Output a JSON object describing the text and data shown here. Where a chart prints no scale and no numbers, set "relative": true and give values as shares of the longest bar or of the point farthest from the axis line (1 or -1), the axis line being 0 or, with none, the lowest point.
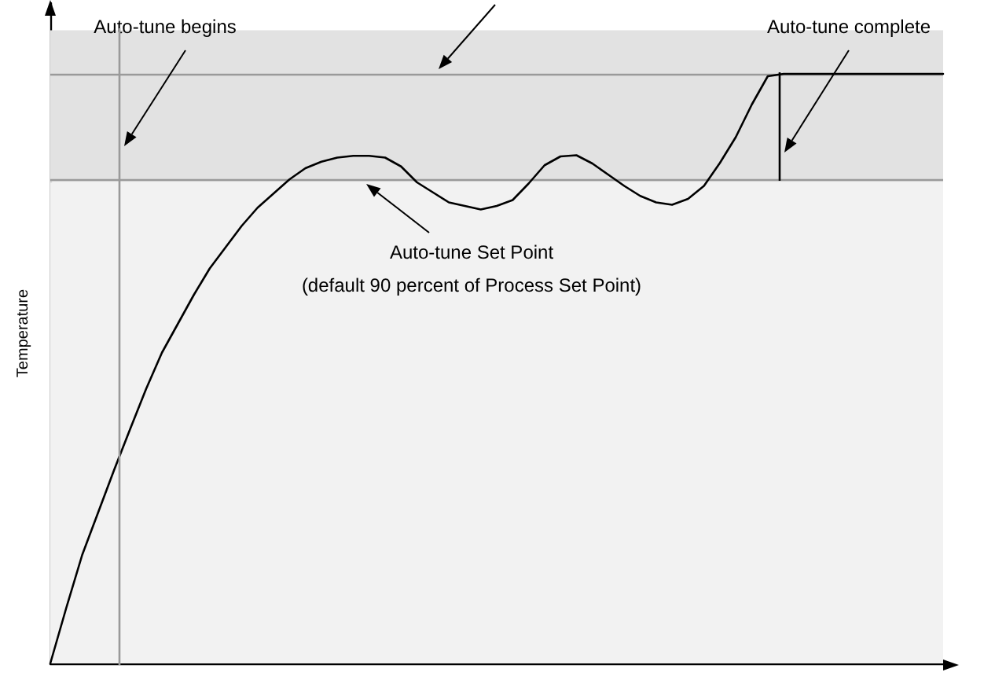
{
  "chart_data": {
    "type": "line",
    "relative": true,
    "ylabel": "Temperature",
    "ylim": [
      0,
      1.12
    ],
    "grid": false,
    "marker": "none",
    "line_style": "solid",
    "categories": [
      null,
      null,
      null,
      null,
      null,
      null,
      null,
      null,
      null,
      null,
      null,
      null,
      null,
      null,
      null,
      null,
      null,
      null,
      null,
      null,
      null,
      null,
      null,
      null,
      null,
      null,
      null,
      null,
      null,
      null,
      null,
      null,
      null,
      null,
      null,
      null,
      null,
      null,
      null,
      null,
      null,
      null,
      null,
      null,
      null,
      null,
      null,
      null,
      null,
      null,
      null,
      null,
      null,
      null,
      null,
      null,
      null
    ],
    "series": [
      {
        "color": "#000000",
        "values": [
          0,
          0.094,
          0.184,
          0.256,
          0.328,
          0.397,
          0.465,
          0.527,
          0.576,
          0.625,
          0.67,
          0.706,
          0.742,
          0.773,
          0.797,
          0.821,
          0.84,
          0.851,
          0.858,
          0.861,
          0.861,
          0.858,
          0.843,
          0.816,
          0.799,
          0.782,
          0.776,
          0.77,
          0.776,
          0.786,
          0.814,
          0.845,
          0.86,
          0.862,
          0.848,
          0.829,
          0.81,
          0.793,
          0.782,
          0.778,
          0.788,
          0.81,
          0.849,
          0.893,
          0.948,
          0.996,
          1,
          1,
          1,
          1,
          1,
          1,
          1,
          1,
          1,
          1,
          1
        ]
      }
    ],
    "bands": [
      {
        "axis": "y",
        "from": 0,
        "to": 0.817,
        "color": "#f2f2f2"
      },
      {
        "axis": "y",
        "from": 0.817,
        "to": 1.074,
        "color": "#e2e2e2"
      }
    ],
    "ref_lines": [
      {
        "axis": "y",
        "value": 1,
        "color": "#9a9a9a"
      },
      {
        "axis": "y",
        "value": 0.817,
        "color": "#9a9a9a"
      }
    ],
    "annotations": [
      "Auto-tune begins",
      "Auto-tune complete",
      "Auto-tune Set Point\n(default 90 percent of Process Set Point)"
    ]
  }
}
